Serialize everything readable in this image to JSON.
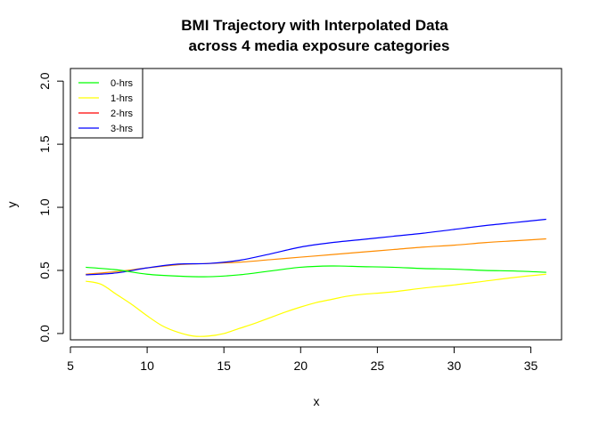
{
  "chart_data": {
    "type": "line",
    "title_lines": [
      "BMI Trajectory with Interpolated Data",
      "across 4 media exposure categories"
    ],
    "xlabel": "x",
    "ylabel": "y",
    "xlim": [
      5,
      37
    ],
    "ylim": [
      -0.05,
      2.1
    ],
    "xticks": [
      5,
      10,
      15,
      20,
      25,
      30,
      35
    ],
    "xtick_labels": [
      "5",
      "10",
      "15",
      "20",
      "25",
      "30",
      "35"
    ],
    "yticks": [
      0.0,
      0.5,
      1.0,
      1.5,
      2.0
    ],
    "ytick_labels": [
      "0.0",
      "0.5",
      "1.0",
      "1.5",
      "2.0"
    ],
    "grid": false,
    "legend_position": "top-left",
    "legend": [
      {
        "label": "0-hrs",
        "color": "#00ff00"
      },
      {
        "label": "1-hrs",
        "color": "#ffff00"
      },
      {
        "label": "2-hrs",
        "color": "#ff0000"
      },
      {
        "label": "3-hrs",
        "color": "#0000ff"
      }
    ],
    "series": [
      {
        "color": "#ff8c00",
        "x": [
          6,
          8,
          10,
          12,
          14,
          16,
          18,
          20,
          22,
          24,
          26,
          28,
          30,
          32,
          34,
          36
        ],
        "y": [
          0.47,
          0.49,
          0.52,
          0.545,
          0.555,
          0.565,
          0.585,
          0.605,
          0.625,
          0.645,
          0.665,
          0.685,
          0.7,
          0.72,
          0.735,
          0.75
        ]
      },
      {
        "color": "#0000ff",
        "x": [
          6,
          8,
          10,
          12,
          14,
          16,
          18,
          20,
          22,
          24,
          26,
          28,
          30,
          32,
          34,
          36
        ],
        "y": [
          0.465,
          0.48,
          0.52,
          0.55,
          0.555,
          0.58,
          0.63,
          0.685,
          0.72,
          0.745,
          0.77,
          0.795,
          0.825,
          0.855,
          0.88,
          0.905
        ]
      },
      {
        "color": "#00ff00",
        "x": [
          6,
          8,
          10,
          12,
          14,
          16,
          18,
          20,
          22,
          24,
          26,
          28,
          30,
          32,
          34,
          36
        ],
        "y": [
          0.525,
          0.505,
          0.47,
          0.455,
          0.45,
          0.465,
          0.495,
          0.525,
          0.535,
          0.53,
          0.525,
          0.515,
          0.51,
          0.5,
          0.495,
          0.485
        ]
      },
      {
        "color": "#ffff00",
        "x": [
          6,
          7,
          8,
          9,
          10,
          11,
          12,
          13,
          14,
          15,
          16,
          17,
          18,
          19,
          20,
          21,
          22,
          23,
          24,
          26,
          28,
          30,
          32,
          34,
          36
        ],
        "y": [
          0.415,
          0.39,
          0.31,
          0.23,
          0.14,
          0.06,
          0.01,
          -0.02,
          -0.02,
          0.0,
          0.04,
          0.08,
          0.125,
          0.17,
          0.21,
          0.245,
          0.27,
          0.295,
          0.31,
          0.33,
          0.36,
          0.385,
          0.415,
          0.445,
          0.47
        ]
      }
    ]
  }
}
